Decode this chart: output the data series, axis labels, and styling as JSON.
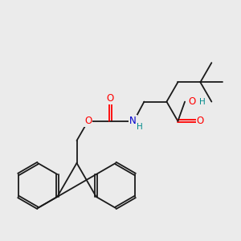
{
  "bg_color": "#ebebeb",
  "bond_color": "#1a1a1a",
  "bond_width": 1.3,
  "figsize": [
    3.0,
    3.0
  ],
  "dpi": 100,
  "O_color": "#ff0000",
  "N_color": "#0000cc",
  "H_color": "#008b8b",
  "C_color": "#1a1a1a",
  "font_size": 8.5,
  "font_size_h": 7.5,
  "xlim": [
    0,
    10
  ],
  "ylim": [
    0,
    10
  ]
}
